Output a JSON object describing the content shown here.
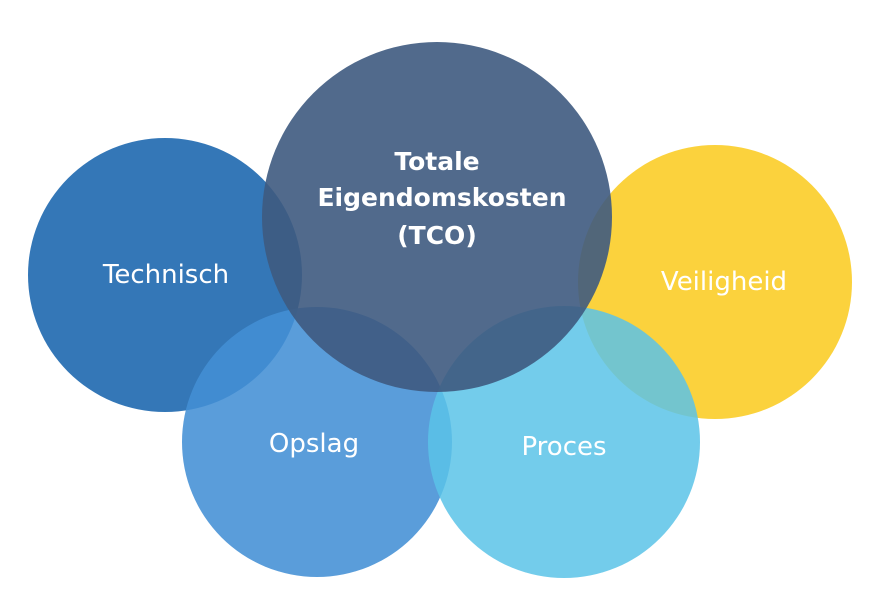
{
  "center": {
    "lines": [
      "Totale",
      "Eigendomskosten",
      "(TCO)"
    ],
    "color": "#3e5a80"
  },
  "circles": [
    {
      "id": "technisch",
      "label": "Technisch",
      "color": "#2970b3"
    },
    {
      "id": "veiligheid",
      "label": "Veiligheid",
      "color": "#fbd033"
    },
    {
      "id": "opslag",
      "label": "Opslag",
      "color": "#4390d5"
    },
    {
      "id": "proces",
      "label": "Proces",
      "color": "#5bc3e8"
    }
  ]
}
